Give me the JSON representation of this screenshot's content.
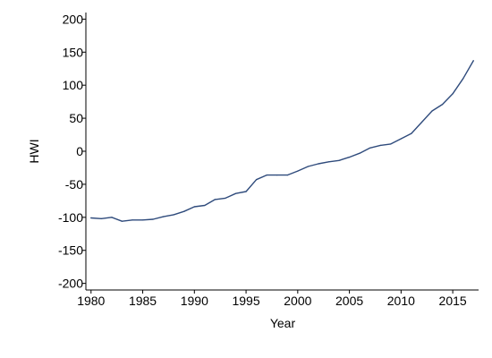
{
  "chart_data": {
    "type": "line",
    "title": "",
    "xlabel": "Year",
    "ylabel": "HWI",
    "xlim": [
      1979.5,
      2017.5
    ],
    "ylim": [
      -210,
      210
    ],
    "x_ticks": [
      1980,
      1985,
      1990,
      1995,
      2000,
      2005,
      2010,
      2015
    ],
    "y_ticks": [
      -200,
      -150,
      -100,
      -50,
      0,
      50,
      100,
      150,
      200
    ],
    "grid": false,
    "line_color": "#2f4b7c",
    "x": [
      1980,
      1981,
      1982,
      1983,
      1984,
      1985,
      1986,
      1987,
      1988,
      1989,
      1990,
      1991,
      1992,
      1993,
      1994,
      1995,
      1996,
      1997,
      1998,
      1999,
      2000,
      2001,
      2002,
      2003,
      2004,
      2005,
      2006,
      2007,
      2008,
      2009,
      2010,
      2011,
      2012,
      2013,
      2014,
      2015,
      2016,
      2017
    ],
    "series": [
      {
        "values": [
          -101,
          -102,
          -100,
          -106,
          -104,
          -104,
          -103,
          -99,
          -96,
          -91,
          -84,
          -82,
          -73,
          -71,
          -64,
          -61,
          -43,
          -36,
          -36,
          -36,
          -30,
          -23,
          -19,
          -16,
          -14,
          -9,
          -3,
          5,
          9,
          11,
          19,
          27,
          44,
          61,
          71,
          87,
          110,
          137
        ]
      }
    ]
  }
}
